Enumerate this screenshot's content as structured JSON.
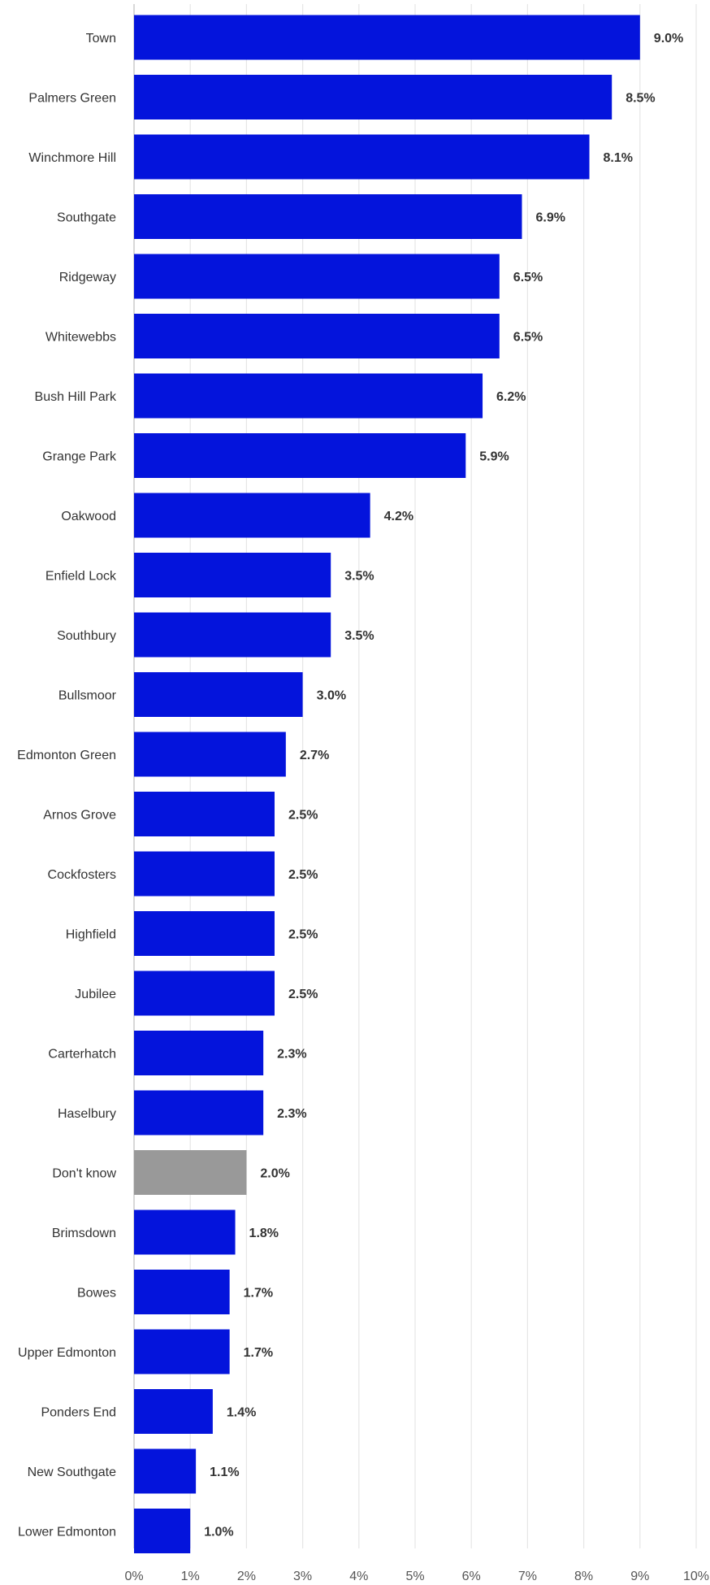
{
  "chart_data": {
    "type": "bar",
    "orientation": "horizontal",
    "title": "",
    "xlabel": "",
    "ylabel": "",
    "xlim": [
      0,
      10
    ],
    "grid": true,
    "categories": [
      "Town",
      "Palmers Green",
      "Winchmore Hill",
      "Southgate",
      "Ridgeway",
      "Whitewebbs",
      "Bush Hill Park",
      "Grange Park",
      "Oakwood",
      "Enfield Lock",
      "Southbury",
      "Bullsmoor",
      "Edmonton Green",
      "Arnos Grove",
      "Cockfosters",
      "Highfield",
      "Jubilee",
      "Carterhatch",
      "Haselbury",
      "Don't know",
      "Brimsdown",
      "Bowes",
      "Upper Edmonton",
      "Ponders End",
      "New Southgate",
      "Lower Edmonton"
    ],
    "values": [
      9.0,
      8.5,
      8.1,
      6.9,
      6.5,
      6.5,
      6.2,
      5.9,
      4.2,
      3.5,
      3.5,
      3.0,
      2.7,
      2.5,
      2.5,
      2.5,
      2.5,
      2.3,
      2.3,
      2.0,
      1.8,
      1.7,
      1.7,
      1.4,
      1.1,
      1.0
    ],
    "value_labels": [
      "9.0%",
      "8.5%",
      "8.1%",
      "6.9%",
      "6.5%",
      "6.5%",
      "6.2%",
      "5.9%",
      "4.2%",
      "3.5%",
      "3.5%",
      "3.0%",
      "2.7%",
      "2.5%",
      "2.5%",
      "2.5%",
      "2.5%",
      "2.3%",
      "2.3%",
      "2.0%",
      "1.8%",
      "1.7%",
      "1.7%",
      "1.4%",
      "1.1%",
      "1.0%"
    ],
    "x_ticks": [
      "0%",
      "1%",
      "2%",
      "3%",
      "4%",
      "5%",
      "6%",
      "7%",
      "8%",
      "9%",
      "10%"
    ],
    "colors": {
      "bar": "#0414DC",
      "highlight_bar": "#999999",
      "highlight_category": "Don't know",
      "label": "#333333"
    }
  }
}
